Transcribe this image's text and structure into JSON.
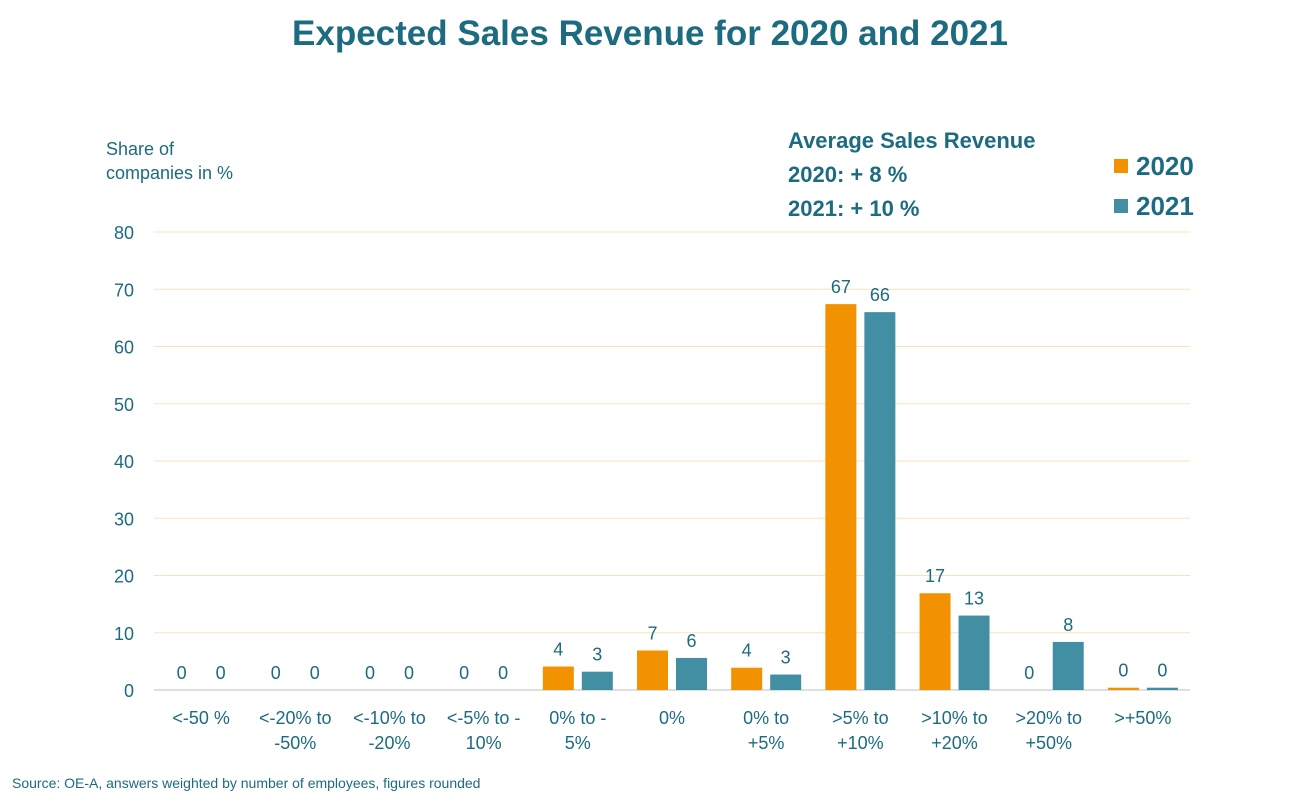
{
  "chart_data": {
    "type": "bar",
    "title": "Expected Sales Revenue for 2020 and 2021",
    "ylabel": "Share of companies in %",
    "ylabel_lines": [
      "Share of",
      "companies in %"
    ],
    "ylim": [
      0,
      80
    ],
    "yticks": [
      0,
      10,
      20,
      30,
      40,
      50,
      60,
      70,
      80
    ],
    "grid": true,
    "legend_placement": "top-right",
    "categories": [
      [
        "<-50 %"
      ],
      [
        "<-20% to",
        "-50%"
      ],
      [
        "<-10% to",
        "-20%"
      ],
      [
        "<-5% to -",
        "10%"
      ],
      [
        "0% to -",
        "5%"
      ],
      [
        "0%"
      ],
      [
        "0% to",
        "+5%"
      ],
      [
        ">5% to",
        "+10%"
      ],
      [
        ">10% to",
        "+20%"
      ],
      [
        ">20% to",
        "+50%"
      ],
      [
        ">+50%"
      ]
    ],
    "series": [
      {
        "name": "2020",
        "color": "#f39200",
        "values": [
          0,
          0,
          0,
          0,
          4.1,
          6.9,
          3.9,
          67.4,
          16.9,
          0,
          0.4
        ],
        "labels": [
          "0",
          "0",
          "0",
          "0",
          "4",
          "7",
          "4",
          "67",
          "17",
          "0",
          "0"
        ]
      },
      {
        "name": "2021",
        "color": "#428ea3",
        "values": [
          0,
          0,
          0,
          0,
          3.2,
          5.6,
          2.7,
          66.0,
          13.0,
          8.4,
          0.4
        ],
        "labels": [
          "0",
          "0",
          "0",
          "0",
          "3",
          "6",
          "3",
          "66",
          "13",
          "8",
          "0"
        ]
      }
    ],
    "annotation": {
      "title": "Average Sales Revenue",
      "lines": [
        "2020: + 8 %",
        "2021: + 10 %"
      ]
    }
  },
  "source": "Source: OE-A, answers weighted by number of employees, figures rounded",
  "colors": {
    "text": "#1c6b80",
    "grid": "#fbe3b8",
    "axis": "#bfbfbf"
  }
}
